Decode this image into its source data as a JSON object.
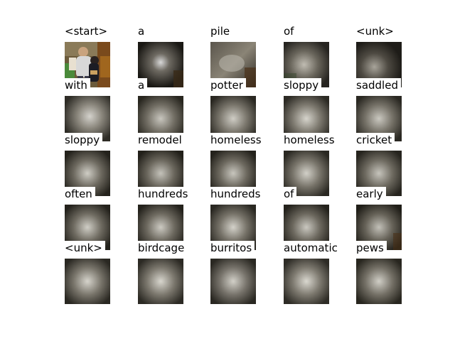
{
  "words": [
    [
      "<start>",
      "a",
      "pile",
      "of",
      "<unk>"
    ],
    [
      "with",
      "a",
      "potter",
      "sloppy",
      "saddled"
    ],
    [
      "sloppy",
      "remodel",
      "homeless",
      "homeless",
      "cricket"
    ],
    [
      "often",
      "hundreds",
      "hundreds",
      "of",
      "early"
    ],
    [
      "<unk>",
      "birdcage",
      "burritos",
      "automatic",
      "pews"
    ]
  ],
  "colors": {
    "background": "#ffffff",
    "text": "#000000"
  }
}
